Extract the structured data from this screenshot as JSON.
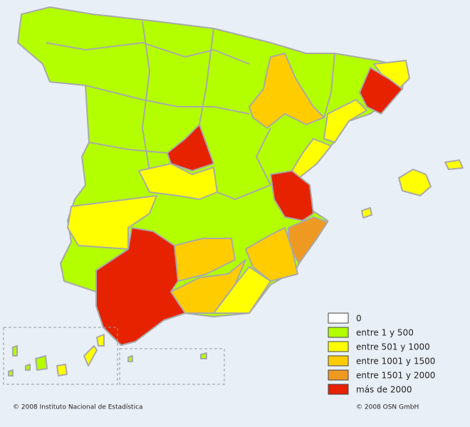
{
  "legend": {
    "items": [
      {
        "label": "0",
        "color": "#ffffff"
      },
      {
        "label": "entre 1 y 500",
        "color": "#b3ff00"
      },
      {
        "label": "entre 501 y 1000",
        "color": "#ffff00"
      },
      {
        "label": "entre 1001 y 1500",
        "color": "#ffcc00"
      },
      {
        "label": "entre 1501 y 2000",
        "color": "#ee9922"
      },
      {
        "label": "más de 2000",
        "color": "#e62200"
      }
    ]
  },
  "credits": {
    "left": "© 2008 Instituto Nacional de Estadística",
    "right": "© 2008 OSN GmbH"
  }
}
